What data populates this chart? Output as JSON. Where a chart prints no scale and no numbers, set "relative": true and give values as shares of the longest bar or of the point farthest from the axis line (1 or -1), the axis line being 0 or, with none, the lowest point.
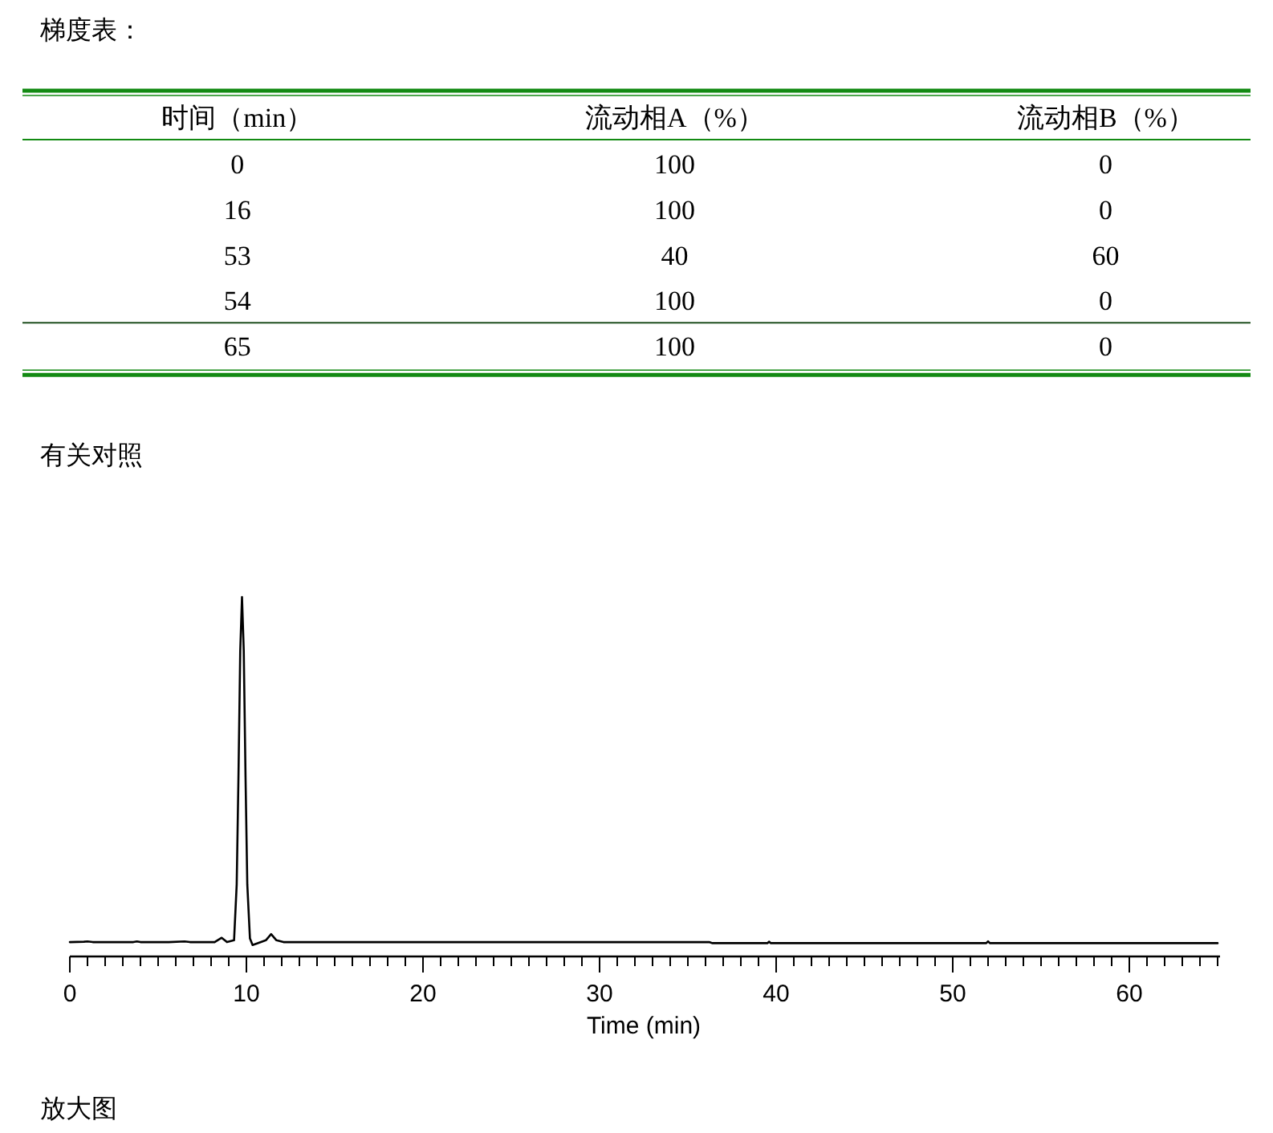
{
  "chart_data": [
    {
      "type": "other",
      "title": "梯度表：",
      "categories": [
        "时间（min）",
        "流动相A（%）",
        "流动相B（%）"
      ],
      "annotations": [
        "0",
        "100",
        "0",
        "16",
        "100",
        "0",
        "53",
        "40",
        "60",
        "54",
        "100",
        "0",
        "65",
        "100",
        "0"
      ]
    },
    {
      "type": "line",
      "title": "有关对照",
      "xlabel": "Time (min)",
      "relative": true,
      "color": "#000000",
      "x": [
        0,
        0.8,
        1.0,
        1.3,
        2.0,
        3.6,
        3.8,
        4.0,
        5.6,
        6.5,
        6.8,
        8.2,
        8.6,
        8.9,
        9.3,
        9.45,
        9.55,
        9.65,
        9.75,
        9.85,
        9.95,
        10.05,
        10.2,
        10.35,
        10.7,
        11.1,
        11.4,
        11.7,
        12.1,
        36.2,
        36.4,
        39.5,
        39.6,
        39.7,
        51.9,
        52.0,
        52.1,
        65
      ],
      "values": [
        0.04,
        0.041,
        0.042,
        0.04,
        0.04,
        0.04,
        0.042,
        0.04,
        0.04,
        0.042,
        0.04,
        0.04,
        0.052,
        0.04,
        0.045,
        0.2,
        0.5,
        0.85,
        1,
        0.85,
        0.5,
        0.2,
        0.05,
        0.032,
        0.038,
        0.045,
        0.062,
        0.045,
        0.04,
        0.04,
        0.037,
        0.037,
        0.041,
        0.037,
        0.037,
        0.042,
        0.037,
        0.037
      ],
      "xlim": [
        0,
        65
      ],
      "xticks": [
        0,
        {
          "value": 1,
          "label": null
        },
        {
          "value": 2,
          "label": null
        },
        {
          "value": 3,
          "label": null
        },
        {
          "value": 4,
          "label": null
        },
        {
          "value": 5,
          "label": null
        },
        {
          "value": 6,
          "label": null
        },
        {
          "value": 7,
          "label": null
        },
        {
          "value": 8,
          "label": null
        },
        {
          "value": 9,
          "label": null
        },
        10,
        {
          "value": 11,
          "label": null
        },
        {
          "value": 12,
          "label": null
        },
        {
          "value": 13,
          "label": null
        },
        {
          "value": 14,
          "label": null
        },
        {
          "value": 15,
          "label": null
        },
        {
          "value": 16,
          "label": null
        },
        {
          "value": 17,
          "label": null
        },
        {
          "value": 18,
          "label": null
        },
        {
          "value": 19,
          "label": null
        },
        20,
        {
          "value": 21,
          "label": null
        },
        {
          "value": 22,
          "label": null
        },
        {
          "value": 23,
          "label": null
        },
        {
          "value": 24,
          "label": null
        },
        {
          "value": 25,
          "label": null
        },
        {
          "value": 26,
          "label": null
        },
        {
          "value": 27,
          "label": null
        },
        {
          "value": 28,
          "label": null
        },
        {
          "value": 29,
          "label": null
        },
        30,
        {
          "value": 31,
          "label": null
        },
        {
          "value": 32,
          "label": null
        },
        {
          "value": 33,
          "label": null
        },
        {
          "value": 34,
          "label": null
        },
        {
          "value": 35,
          "label": null
        },
        {
          "value": 36,
          "label": null
        },
        {
          "value": 37,
          "label": null
        },
        {
          "value": 38,
          "label": null
        },
        {
          "value": 39,
          "label": null
        },
        40,
        {
          "value": 41,
          "label": null
        },
        {
          "value": 42,
          "label": null
        },
        {
          "value": 43,
          "label": null
        },
        {
          "value": 44,
          "label": null
        },
        {
          "value": 45,
          "label": null
        },
        {
          "value": 46,
          "label": null
        },
        {
          "value": 47,
          "label": null
        },
        {
          "value": 48,
          "label": null
        },
        {
          "value": 49,
          "label": null
        },
        50,
        {
          "value": 51,
          "label": null
        },
        {
          "value": 52,
          "label": null
        },
        {
          "value": 53,
          "label": null
        },
        {
          "value": 54,
          "label": null
        },
        {
          "value": 55,
          "label": null
        },
        {
          "value": 56,
          "label": null
        },
        {
          "value": 57,
          "label": null
        },
        {
          "value": 58,
          "label": null
        },
        {
          "value": 59,
          "label": null
        },
        60,
        {
          "value": 61,
          "label": null
        },
        {
          "value": 62,
          "label": null
        },
        {
          "value": 63,
          "label": null
        },
        {
          "value": 64,
          "label": null
        },
        {
          "value": 65,
          "label": null
        }
      ],
      "annotations": [
        "放大图"
      ]
    }
  ]
}
